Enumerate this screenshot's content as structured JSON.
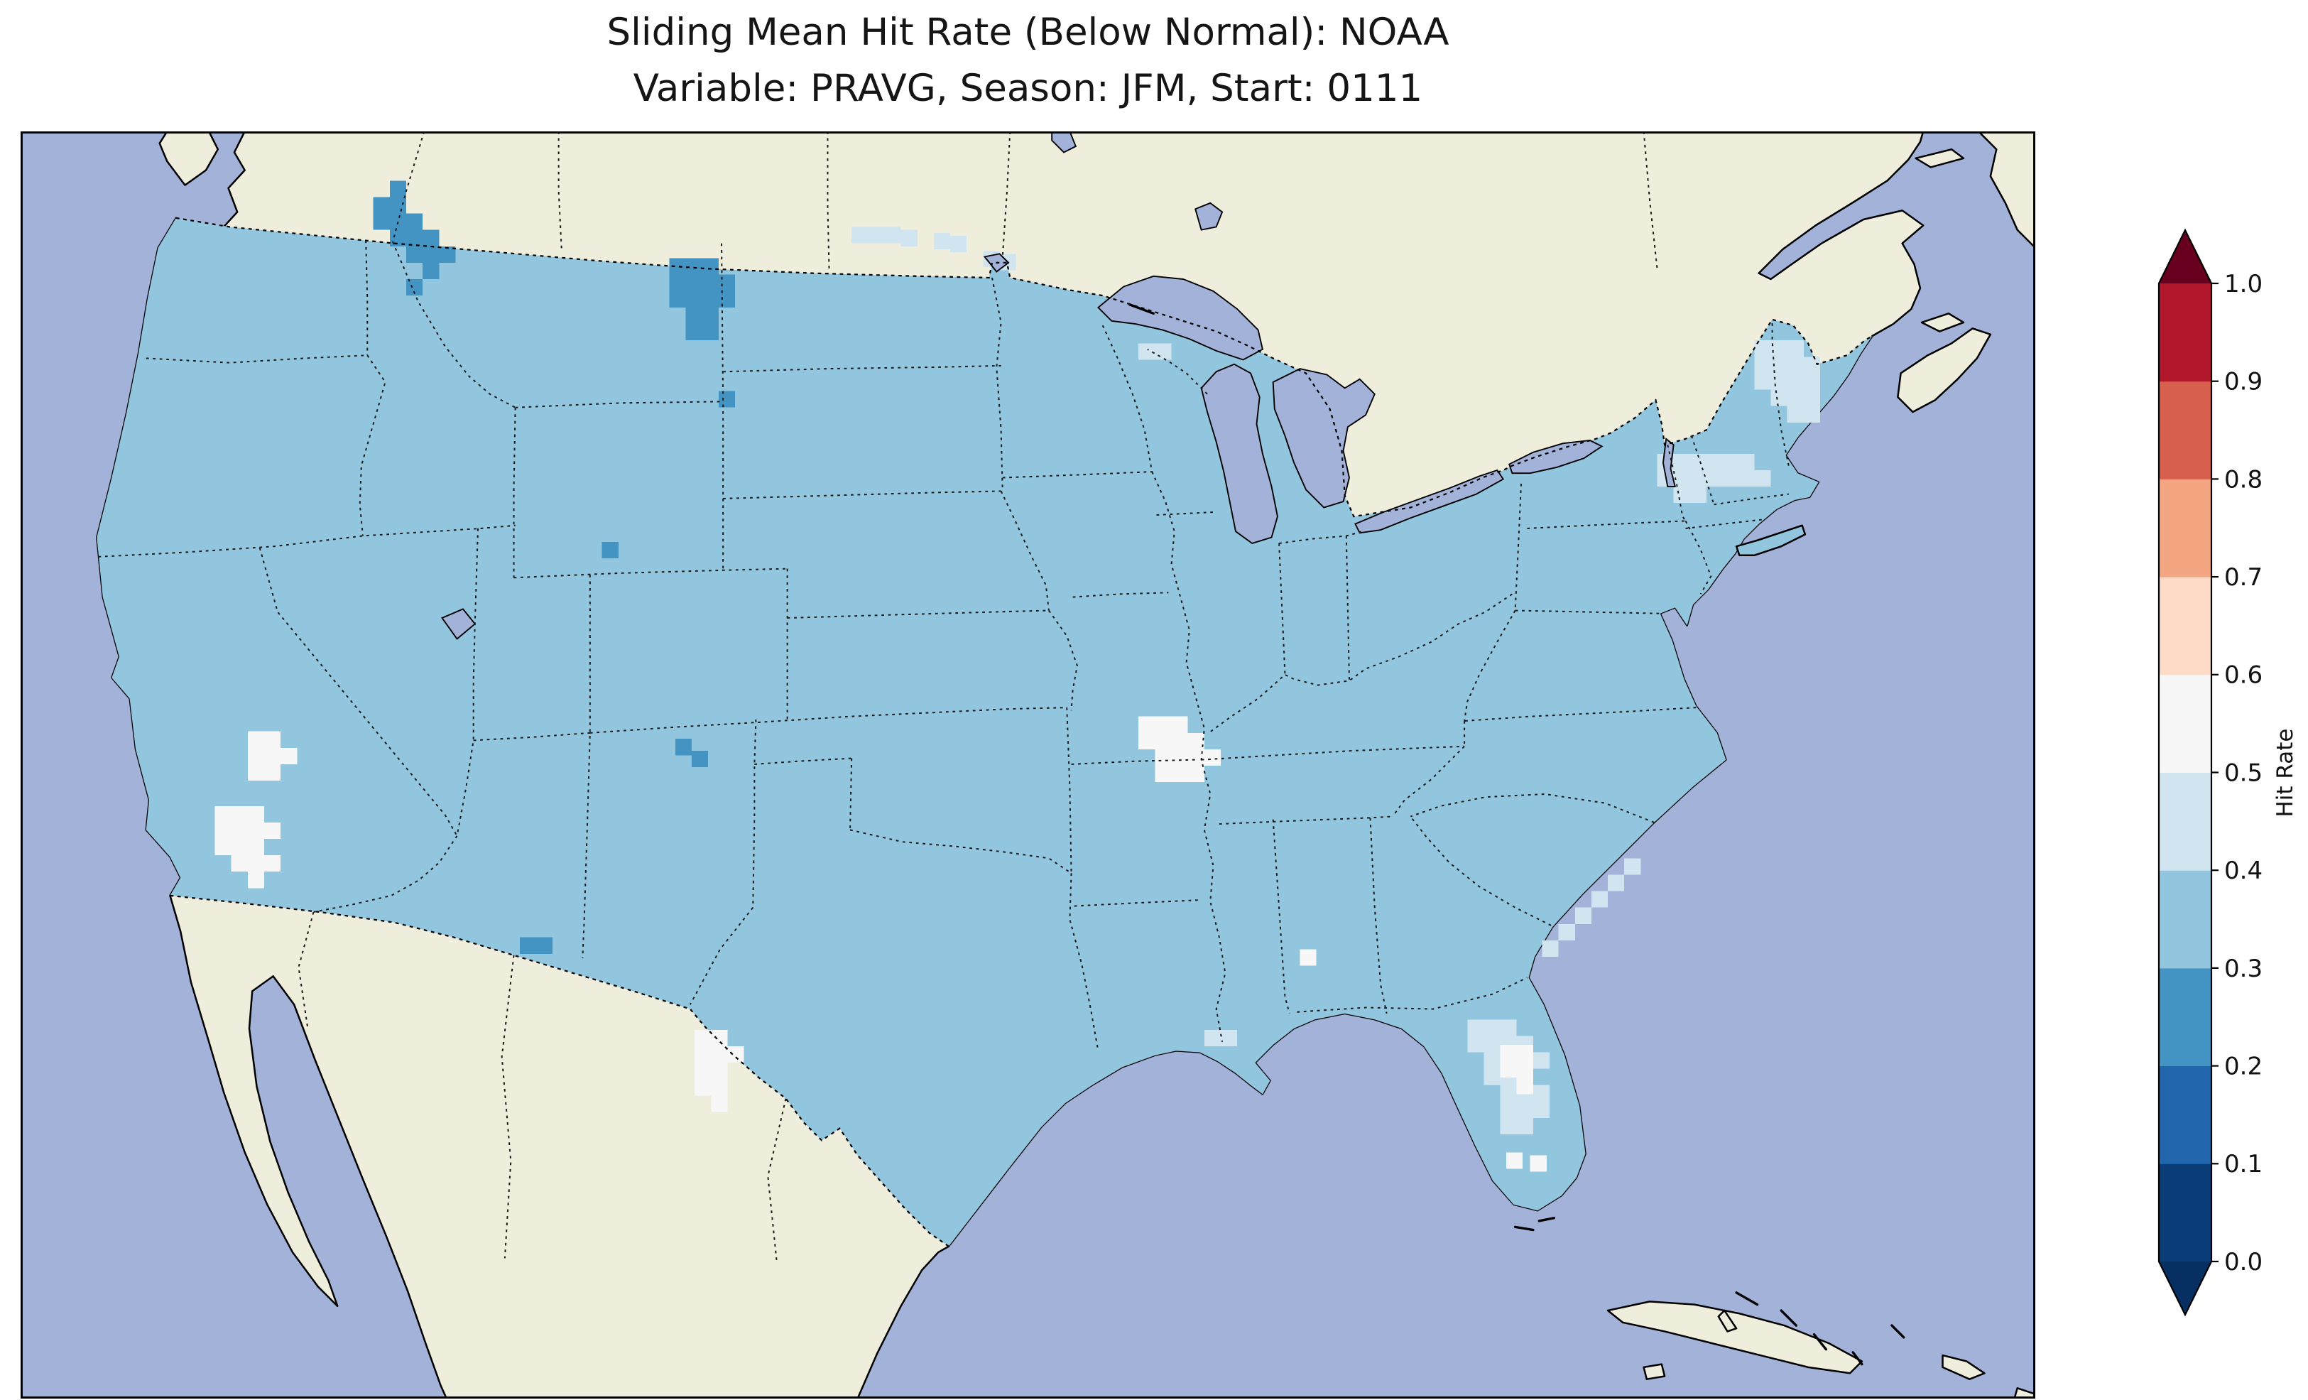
{
  "title": {
    "line1": "Sliding Mean Hit Rate (Below Normal): NOAA",
    "line2": "Variable: PRAVG, Season: JFM, Start: 0111"
  },
  "colorbar": {
    "label": "Hit Rate",
    "ticks": [
      {
        "value": 0.0,
        "label": "0.0"
      },
      {
        "value": 0.1,
        "label": "0.1"
      },
      {
        "value": 0.2,
        "label": "0.2"
      },
      {
        "value": 0.3,
        "label": "0.3"
      },
      {
        "value": 0.4,
        "label": "0.4"
      },
      {
        "value": 0.5,
        "label": "0.5"
      },
      {
        "value": 0.6,
        "label": "0.6"
      },
      {
        "value": 0.7,
        "label": "0.7"
      },
      {
        "value": 0.8,
        "label": "0.8"
      },
      {
        "value": 0.9,
        "label": "0.9"
      },
      {
        "value": 1.0,
        "label": "1.0"
      }
    ],
    "bins": [
      {
        "range": "0.0-0.1",
        "color": "#0b3d78"
      },
      {
        "range": "0.1-0.2",
        "color": "#2166ac"
      },
      {
        "range": "0.2-0.3",
        "color": "#4393c3"
      },
      {
        "range": "0.3-0.4",
        "color": "#92c5de"
      },
      {
        "range": "0.4-0.5",
        "color": "#d1e5f0"
      },
      {
        "range": "0.5-0.6",
        "color": "#f7f7f7"
      },
      {
        "range": "0.6-0.7",
        "color": "#fddbc7"
      },
      {
        "range": "0.7-0.8",
        "color": "#f4a582"
      },
      {
        "range": "0.8-0.9",
        "color": "#d6604d"
      },
      {
        "range": "0.9-1.0",
        "color": "#b2182b"
      }
    ],
    "extend_under_color": "#053061",
    "extend_over_color": "#67001f"
  },
  "map": {
    "ocean_color": "#a3b2d9",
    "land_color": "#efeedd",
    "lake_color": "#a3b2d9",
    "base_bin": "0.3-0.4",
    "base_color": "#92c5de",
    "cell_size": 11,
    "patches": [
      {
        "name": "hit-rate-0.2-0.3-northwest-border",
        "bin": "0.2-0.3",
        "color": "#4393c3",
        "cells": [
          [
            247,
            33
          ],
          [
            236,
            44
          ],
          [
            247,
            44
          ],
          [
            236,
            55
          ],
          [
            247,
            55
          ],
          [
            258,
            55
          ],
          [
            247,
            66
          ],
          [
            258,
            66
          ],
          [
            269,
            66
          ],
          [
            258,
            77
          ],
          [
            269,
            77
          ],
          [
            280,
            77
          ],
          [
            269,
            88
          ],
          [
            258,
            99
          ]
        ]
      },
      {
        "name": "hit-rate-0.2-0.3-north-montana",
        "bin": "0.2-0.3",
        "color": "#4393c3",
        "cells": [
          [
            434,
            85
          ],
          [
            445,
            85
          ],
          [
            456,
            85
          ],
          [
            434,
            96
          ],
          [
            445,
            96
          ],
          [
            456,
            96
          ],
          [
            467,
            96
          ],
          [
            434,
            107
          ],
          [
            445,
            107
          ],
          [
            456,
            107
          ],
          [
            467,
            107
          ],
          [
            445,
            118
          ],
          [
            456,
            118
          ],
          [
            445,
            129
          ],
          [
            456,
            129
          ]
        ]
      },
      {
        "name": "hit-rate-0.2-0.3-scattered",
        "bin": "0.2-0.3",
        "color": "#4393c3",
        "cells": [
          [
            389,
            275
          ],
          [
            467,
            174
          ],
          [
            438,
            407
          ],
          [
            449,
            415
          ],
          [
            334,
            540
          ],
          [
            345,
            540
          ]
        ]
      },
      {
        "name": "hit-rate-0.4-0.5-canada-border-strip",
        "bin": "0.4-0.5",
        "color": "#d1e5f0",
        "cells": [
          [
            556,
            64
          ],
          [
            567,
            64
          ],
          [
            578,
            64
          ],
          [
            589,
            66
          ],
          [
            611,
            68
          ],
          [
            622,
            70
          ],
          [
            644,
            80
          ],
          [
            655,
            82
          ],
          [
            748,
            142
          ],
          [
            759,
            142
          ]
        ]
      },
      {
        "name": "hit-rate-0.4-0.5-northeast",
        "bin": "0.4-0.5",
        "color": "#d1e5f0",
        "cells": [
          [
            1160,
            140
          ],
          [
            1171,
            140
          ],
          [
            1182,
            140
          ],
          [
            1160,
            151
          ],
          [
            1171,
            151
          ],
          [
            1182,
            151
          ],
          [
            1193,
            151
          ],
          [
            1160,
            162
          ],
          [
            1171,
            162
          ],
          [
            1182,
            162
          ],
          [
            1193,
            162
          ],
          [
            1171,
            173
          ],
          [
            1182,
            173
          ],
          [
            1193,
            173
          ],
          [
            1182,
            184
          ],
          [
            1193,
            184
          ],
          [
            1116,
            216
          ],
          [
            1127,
            216
          ],
          [
            1138,
            216
          ],
          [
            1149,
            216
          ],
          [
            1116,
            227
          ],
          [
            1127,
            227
          ],
          [
            1138,
            227
          ],
          [
            1149,
            227
          ],
          [
            1160,
            227
          ],
          [
            1095,
            216
          ],
          [
            1106,
            216
          ],
          [
            1095,
            227
          ],
          [
            1106,
            227
          ],
          [
            1106,
            238
          ],
          [
            1117,
            238
          ]
        ]
      },
      {
        "name": "hit-rate-0.4-0.5-florida",
        "bin": "0.4-0.5",
        "color": "#d1e5f0",
        "cells": [
          [
            968,
            595
          ],
          [
            979,
            595
          ],
          [
            990,
            595
          ],
          [
            968,
            606
          ],
          [
            979,
            606
          ],
          [
            990,
            606
          ],
          [
            1001,
            606
          ],
          [
            979,
            617
          ],
          [
            990,
            617
          ],
          [
            1001,
            617
          ],
          [
            1012,
            617
          ],
          [
            979,
            628
          ],
          [
            990,
            628
          ],
          [
            1001,
            628
          ],
          [
            990,
            639
          ],
          [
            1001,
            639
          ],
          [
            1012,
            639
          ],
          [
            990,
            650
          ],
          [
            1001,
            650
          ],
          [
            1012,
            650
          ],
          [
            990,
            661
          ],
          [
            1001,
            661
          ]
        ]
      },
      {
        "name": "hit-rate-0.4-0.5-coastal-fringe",
        "bin": "0.4-0.5",
        "color": "#d1e5f0",
        "cells": [
          [
            1018,
            542
          ],
          [
            1029,
            531
          ],
          [
            1040,
            520
          ],
          [
            1051,
            509
          ],
          [
            1062,
            498
          ],
          [
            1073,
            487
          ],
          [
            792,
            602
          ],
          [
            803,
            602
          ]
        ]
      },
      {
        "name": "hit-rate-0.5-0.6-california-nevada",
        "bin": "0.5-0.6",
        "color": "#f7f7f7",
        "cells": [
          [
            152,
            402
          ],
          [
            163,
            402
          ],
          [
            152,
            413
          ],
          [
            163,
            413
          ],
          [
            174,
            413
          ],
          [
            152,
            424
          ],
          [
            163,
            424
          ],
          [
            130,
            452
          ],
          [
            141,
            452
          ],
          [
            152,
            452
          ],
          [
            130,
            463
          ],
          [
            141,
            463
          ],
          [
            152,
            463
          ],
          [
            163,
            463
          ],
          [
            130,
            474
          ],
          [
            141,
            474
          ],
          [
            152,
            474
          ],
          [
            141,
            485
          ],
          [
            152,
            485
          ],
          [
            163,
            485
          ],
          [
            152,
            496
          ]
        ]
      },
      {
        "name": "hit-rate-0.5-0.6-missouri-illinois",
        "bin": "0.5-0.6",
        "color": "#f7f7f7",
        "cells": [
          [
            748,
            392
          ],
          [
            759,
            392
          ],
          [
            770,
            392
          ],
          [
            748,
            403
          ],
          [
            759,
            403
          ],
          [
            770,
            403
          ],
          [
            781,
            403
          ],
          [
            759,
            414
          ],
          [
            770,
            414
          ],
          [
            781,
            414
          ],
          [
            792,
            414
          ],
          [
            759,
            425
          ],
          [
            770,
            425
          ],
          [
            781,
            425
          ]
        ]
      },
      {
        "name": "hit-rate-0.5-0.6-texas",
        "bin": "0.5-0.6",
        "color": "#f7f7f7",
        "cells": [
          [
            451,
            602
          ],
          [
            462,
            602
          ],
          [
            451,
            613
          ],
          [
            462,
            613
          ],
          [
            473,
            613
          ],
          [
            451,
            624
          ],
          [
            462,
            624
          ],
          [
            451,
            635
          ],
          [
            462,
            635
          ],
          [
            462,
            646
          ]
        ]
      },
      {
        "name": "hit-rate-0.5-0.6-scattered-southeast",
        "bin": "0.5-0.6",
        "color": "#f7f7f7",
        "cells": [
          [
            856,
            548
          ],
          [
            990,
            612
          ],
          [
            1001,
            612
          ],
          [
            990,
            623
          ],
          [
            1001,
            623
          ],
          [
            1001,
            634
          ],
          [
            994,
            684
          ],
          [
            1010,
            686
          ]
        ]
      }
    ]
  },
  "chart_data": {
    "type": "heatmap",
    "subtype": "gridded-choropleth-map",
    "title": "Sliding Mean Hit Rate (Below Normal): NOAA",
    "subtitle": "Variable: PRAVG, Season: JFM, Start: 0111",
    "source": "NOAA",
    "variable": "PRAVG",
    "season": "JFM",
    "start": "0111",
    "metric": "Hit Rate (Below Normal)",
    "region": "Contiguous United States",
    "colorbar_label": "Hit Rate",
    "colorbar_ticks": [
      0.0,
      0.1,
      0.2,
      0.3,
      0.4,
      0.5,
      0.6,
      0.7,
      0.8,
      0.9,
      1.0
    ],
    "value_range": [
      0.0,
      1.0
    ],
    "colormap": "RdBu_r, 10 discrete bins, extended arrows both ends",
    "legend_position": "right",
    "grid": false,
    "summary": [
      {
        "region": "Most of contiguous US",
        "hit_rate_bin": "0.3-0.4"
      },
      {
        "region": "NW Washington/Idaho border into Canada",
        "hit_rate_bin": "0.2-0.3"
      },
      {
        "region": "North-central Montana",
        "hit_rate_bin": "0.2-0.3"
      },
      {
        "region": "Scattered cells (SD, SE MT, NM, NM/TX border)",
        "hit_rate_bin": "0.2-0.3"
      },
      {
        "region": "Eastern California / Nevada patches",
        "hit_rate_bin": "0.5-0.6"
      },
      {
        "region": "Missouri / southern Illinois patch",
        "hit_rate_bin": "0.5-0.6"
      },
      {
        "region": "South-central Texas patch",
        "hit_rate_bin": "0.5-0.6"
      },
      {
        "region": "Florida peninsula and Northeast coast",
        "hit_rate_bin": "0.4-0.5"
      },
      {
        "region": "Small white spots: Alabama, central & south Florida",
        "hit_rate_bin": "0.5-0.6"
      }
    ]
  }
}
